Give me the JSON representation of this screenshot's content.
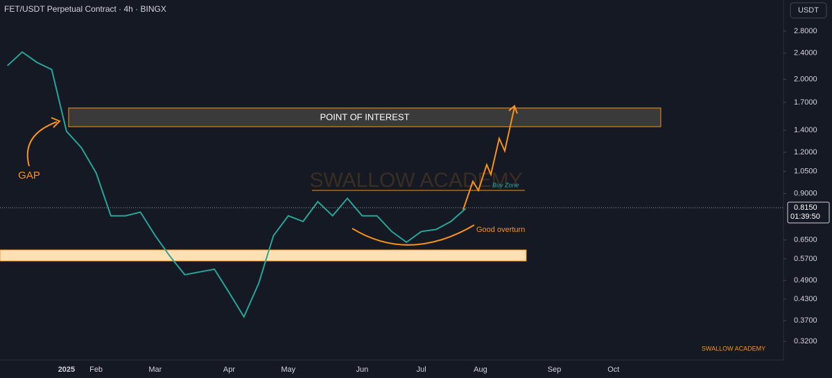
{
  "chart_data": {
    "type": "line",
    "log_scale": true,
    "header": "FET/USDT Perpetual Contract · 4h · BINGX",
    "currency": "USDT",
    "categories": [
      null,
      null,
      null,
      null,
      "2025",
      null,
      "Feb",
      null,
      null,
      null,
      "Mar",
      null,
      null,
      null,
      null,
      "Apr",
      null,
      null,
      null,
      "May",
      null,
      null,
      null,
      null,
      "Jun",
      null,
      null,
      null,
      "Jul",
      null,
      null,
      null,
      "Aug",
      null,
      null,
      null,
      null,
      "Sep",
      null,
      null,
      null,
      "Oct",
      null,
      null,
      null,
      null,
      null,
      null,
      null,
      null,
      null,
      null,
      null
    ],
    "values": [
      2.2,
      2.42,
      2.25,
      2.14,
      1.39,
      1.24,
      1.04,
      0.77,
      0.77,
      0.79,
      0.67,
      0.58,
      0.51,
      0.52,
      0.53,
      0.45,
      0.38,
      0.48,
      0.67,
      0.77,
      0.74,
      0.85,
      0.77,
      0.87,
      0.77,
      0.77,
      0.69,
      0.64,
      0.69,
      0.7,
      0.74,
      0.81,
      null,
      null,
      null,
      null,
      null,
      null,
      null,
      null,
      null,
      null,
      null,
      null,
      null,
      null,
      null,
      null,
      null,
      null,
      null,
      null,
      null
    ],
    "color": "#26a69a",
    "ylim": [
      0.281,
      3.48
    ],
    "yticks": [
      {
        "value": 2.8,
        "label": "2.8000"
      },
      {
        "value": 2.4,
        "label": "2.4000"
      },
      {
        "value": 2.0,
        "label": "2.0000"
      },
      {
        "value": 1.7,
        "label": "1.7000"
      },
      {
        "value": 1.4,
        "label": "1.4000"
      },
      {
        "value": 1.2,
        "label": "1.2000"
      },
      {
        "value": 1.05,
        "label": "1.0500"
      },
      {
        "value": 0.9,
        "label": "0.9000"
      },
      {
        "value": 0.65,
        "label": "0.6500"
      },
      {
        "value": 0.57,
        "label": "0.5700"
      },
      {
        "value": 0.49,
        "label": "0.4900"
      },
      {
        "value": 0.43,
        "label": "0.4300"
      },
      {
        "value": 0.37,
        "label": "0.3700"
      },
      {
        "value": 0.32,
        "label": "0.3200"
      }
    ],
    "last_price": {
      "value": 0.815,
      "label": "0.8150"
    },
    "countdown": "01:39:50",
    "annotations": {
      "poi": "POINT OF INTEREST",
      "gap": "GAP",
      "buy_zone": "Buy Zone",
      "overturn": "Good overturn",
      "watermark": "SWALLOW ACADEMY",
      "footer": "SWALLOW ACADEMY"
    }
  }
}
